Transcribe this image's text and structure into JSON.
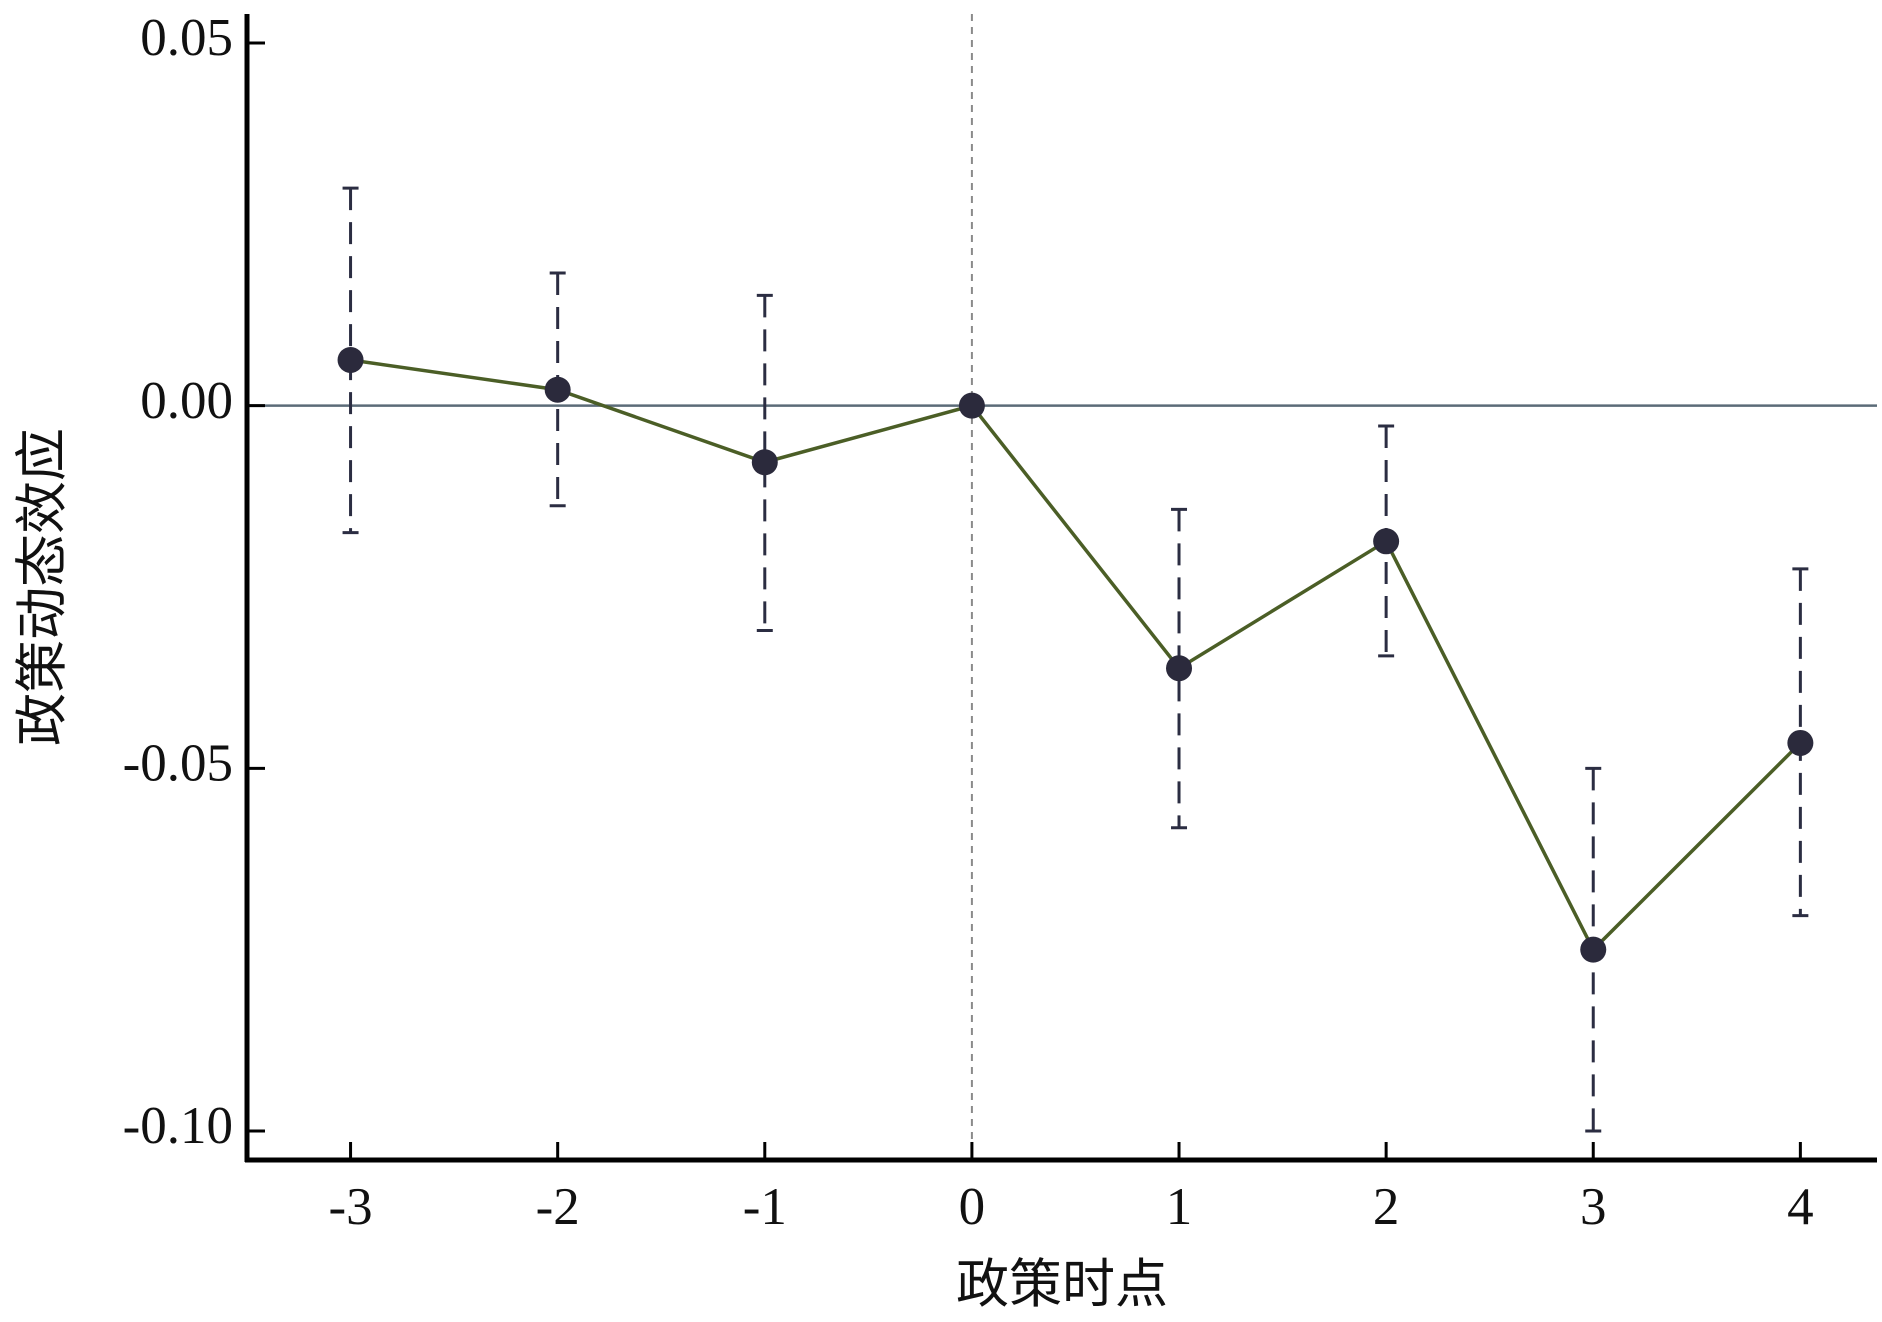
{
  "chart_data": {
    "type": "errorline",
    "xlabel": "政策时点",
    "ylabel": "政策动态效应",
    "x": [
      -3,
      -2,
      -1,
      0,
      1,
      2,
      3,
      4
    ],
    "series": [
      {
        "color": "#4b5e26",
        "marker_color": "#2b2a3c",
        "error_color": "#2b2d42",
        "values": [
          0.0063,
          0.0022,
          -0.0078,
          0,
          -0.0362,
          -0.0187,
          -0.075,
          -0.0465
        ],
        "lower": [
          -0.0175,
          -0.0138,
          -0.031,
          0,
          -0.0582,
          -0.0345,
          -0.1,
          -0.0703
        ],
        "upper": [
          0.03,
          0.0183,
          0.0152,
          0,
          -0.0143,
          -0.0028,
          -0.05,
          -0.0225
        ]
      }
    ],
    "xlim": [
      -3.5,
      4.37
    ],
    "ylim": [
      -0.104,
      0.054
    ],
    "xticks": [
      -3,
      -2,
      -1,
      0,
      1,
      2,
      3,
      4
    ],
    "yticks": [
      {
        "value": 0.05,
        "label": "0.05"
      },
      {
        "value": 0,
        "label": "0.00"
      },
      {
        "value": -0.05,
        "label": "-0.05"
      },
      {
        "value": -0.1,
        "label": "-0.10"
      }
    ],
    "hline": 0,
    "hline_color": "#5b6b78",
    "vline": 0,
    "vline_color": "#8a8a8a"
  }
}
